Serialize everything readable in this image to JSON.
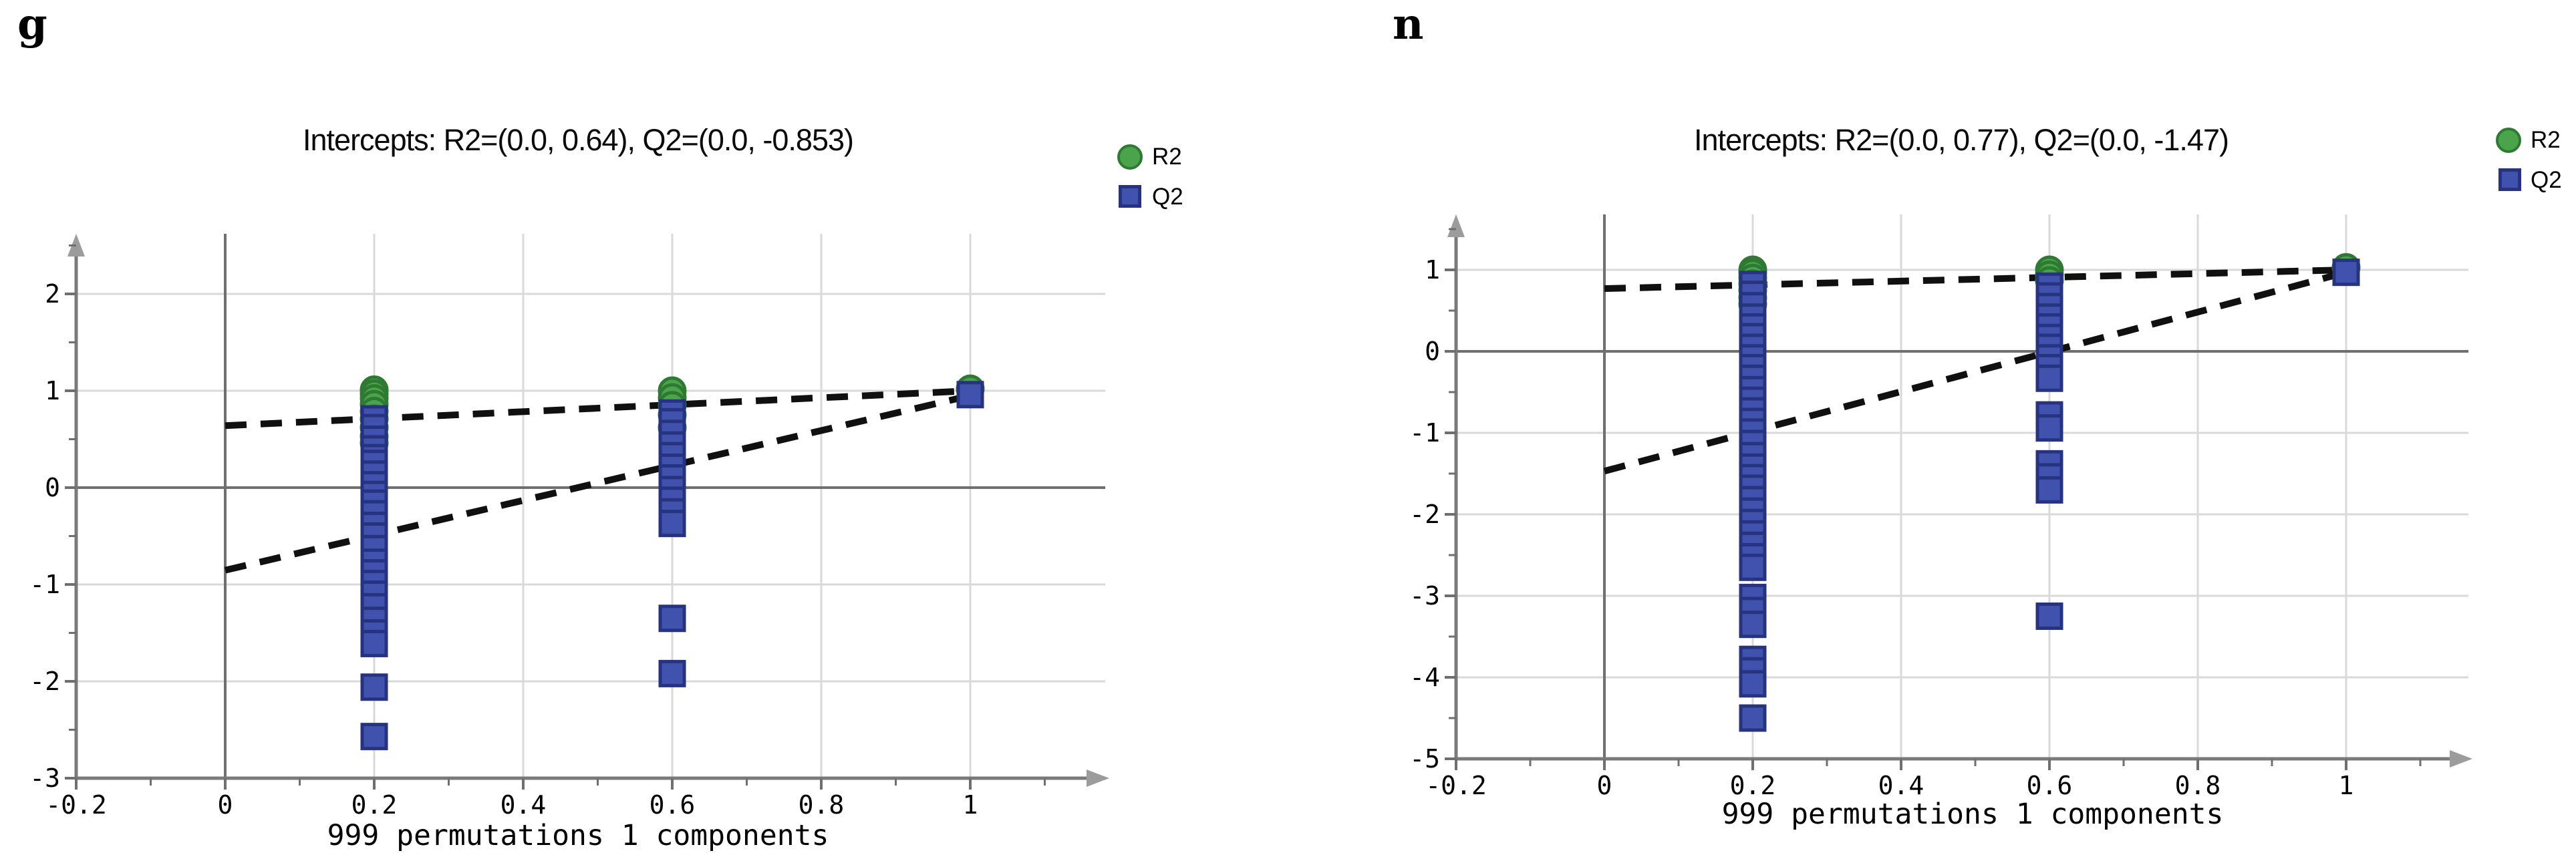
{
  "figure": {
    "background": "#ffffff",
    "accent_green": "#4BA44C",
    "accent_green_edge": "#2E7A33",
    "accent_blue": "#4052AE",
    "accent_blue_edge": "#27337E",
    "dash_color": "#101010",
    "grid_color": "#D9D9D9",
    "zero_line_color": "#6F6F6F",
    "spine_color": "#7A7A7A",
    "arrow_color": "#9C9C9C"
  },
  "chart_data": [
    {
      "type": "scatter",
      "panel_label": "g",
      "title": "Intercepts: R2=(0.0, 0.64), Q2=(0.0, -0.853)",
      "xlabel": "999 permutations 1 components",
      "xlim": [
        -0.2,
        1.19
      ],
      "ylim": [
        -3,
        2.62
      ],
      "xticks": [
        -0.2,
        0,
        0.2,
        0.4,
        0.6,
        0.8,
        1
      ],
      "yticks": [
        -3,
        -2,
        -1,
        0,
        1,
        2
      ],
      "xticks_minor": [
        -0.1,
        0.1,
        0.3,
        0.5,
        0.7,
        0.9,
        1.1
      ],
      "yticks_minor": [
        -2.5,
        -1.5,
        -0.5,
        0.5,
        1.5,
        2.5
      ],
      "grid": true,
      "legend_position": "top-right",
      "legend": [
        {
          "label": "R2",
          "marker": "circle",
          "color": "#4BA44C",
          "edge": "#2E7A33"
        },
        {
          "label": "Q2",
          "marker": "square",
          "color": "#4052AE",
          "edge": "#27337E"
        }
      ],
      "regression_lines": [
        {
          "series": "R2",
          "from": [
            0,
            0.64
          ],
          "to": [
            1,
            1.0
          ]
        },
        {
          "series": "Q2",
          "from": [
            0,
            -0.853
          ],
          "to": [
            1,
            0.95
          ]
        }
      ],
      "series": [
        {
          "name": "R2",
          "marker": "circle",
          "color": "#4BA44C",
          "edge": "#2E7A33",
          "points": [
            {
              "x": 0.2,
              "y": [
                1.01,
                0.97,
                0.92,
                0.86,
                0.79,
                0.71,
                0.62,
                0.53,
                0.46
              ]
            },
            {
              "x": 0.6,
              "y": [
                1.0,
                0.93,
                0.85,
                0.75,
                0.62
              ]
            },
            {
              "x": 1.0,
              "y": [
                1.02
              ]
            }
          ]
        },
        {
          "name": "Q2",
          "marker": "square",
          "color": "#4052AE",
          "edge": "#27337E",
          "points": [
            {
              "x": 0.2,
              "y": [
                0.71,
                0.62,
                0.5,
                0.4,
                0.31,
                0.25,
                0.14,
                0.03,
                -0.07,
                -0.16,
                -0.27,
                -0.39,
                -0.5,
                -0.63,
                -0.77,
                -0.88,
                -0.99,
                -1.1,
                -1.23,
                -1.37,
                -1.5,
                -1.61,
                -2.06,
                -2.57
              ]
            },
            {
              "x": 0.6,
              "y": [
                0.77,
                0.68,
                0.56,
                0.44,
                0.33,
                0.21,
                0.1,
                -0.02,
                -0.13,
                -0.25,
                -0.37,
                -1.35,
                -1.92
              ]
            },
            {
              "x": 1.0,
              "y": [
                0.96
              ]
            }
          ]
        }
      ]
    },
    {
      "type": "scatter",
      "panel_label": "n",
      "title": "Intercepts: R2=(0.0, 0.77), Q2=(0.0, -1.47)",
      "xlabel": "999 permutations 1 components",
      "xlim": [
        -0.2,
        1.17
      ],
      "ylim": [
        -5,
        1.68
      ],
      "xticks": [
        -0.2,
        0,
        0.2,
        0.4,
        0.6,
        0.8,
        1
      ],
      "yticks": [
        -5,
        -4,
        -3,
        -2,
        -1,
        0,
        1
      ],
      "xticks_minor": [
        -0.1,
        0.1,
        0.3,
        0.5,
        0.7,
        0.9,
        1.1
      ],
      "yticks_minor": [
        -4.5,
        -3.5,
        -2.5,
        -1.5,
        -0.5,
        0.5,
        1.5
      ],
      "grid": true,
      "legend_position": "top-right",
      "legend": [
        {
          "label": "R2",
          "marker": "circle",
          "color": "#4BA44C",
          "edge": "#2E7A33"
        },
        {
          "label": "Q2",
          "marker": "square",
          "color": "#4052AE",
          "edge": "#27337E"
        }
      ],
      "regression_lines": [
        {
          "series": "R2",
          "from": [
            0,
            0.77
          ],
          "to": [
            1,
            1.0
          ]
        },
        {
          "series": "Q2",
          "from": [
            0,
            -1.47
          ],
          "to": [
            1,
            0.97
          ]
        }
      ],
      "series": [
        {
          "name": "R2",
          "marker": "circle",
          "color": "#4BA44C",
          "edge": "#2E7A33",
          "points": [
            {
              "x": 0.2,
              "y": [
                1.0,
                0.96,
                0.9,
                0.83,
                0.75,
                0.66,
                0.58
              ]
            },
            {
              "x": 0.6,
              "y": [
                1.0,
                0.94,
                0.87
              ]
            },
            {
              "x": 1.0,
              "y": [
                1.03
              ]
            }
          ]
        },
        {
          "name": "Q2",
          "marker": "square",
          "color": "#4052AE",
          "edge": "#27337E",
          "points": [
            {
              "x": 0.2,
              "y": [
                0.82,
                0.7,
                0.56,
                0.42,
                0.3,
                0.18,
                0.05,
                -0.08,
                -0.2,
                -0.33,
                -0.47,
                -0.6,
                -0.73,
                -0.86,
                -0.99,
                -1.13,
                -1.28,
                -1.42,
                -1.55,
                -1.68,
                -1.82,
                -1.96,
                -2.1,
                -2.24,
                -2.38,
                -2.52,
                -2.65,
                -3.02,
                -3.18,
                -3.35,
                -3.78,
                -3.92,
                -4.08,
                -4.5
              ]
            },
            {
              "x": 0.6,
              "y": [
                0.8,
                0.68,
                0.55,
                0.42,
                0.3,
                0.17,
                0.05,
                -0.08,
                -0.2,
                -0.33,
                -0.78,
                -0.94,
                -1.38,
                -1.54,
                -1.7,
                -3.25
              ]
            },
            {
              "x": 1.0,
              "y": [
                0.97
              ]
            }
          ]
        }
      ]
    }
  ]
}
